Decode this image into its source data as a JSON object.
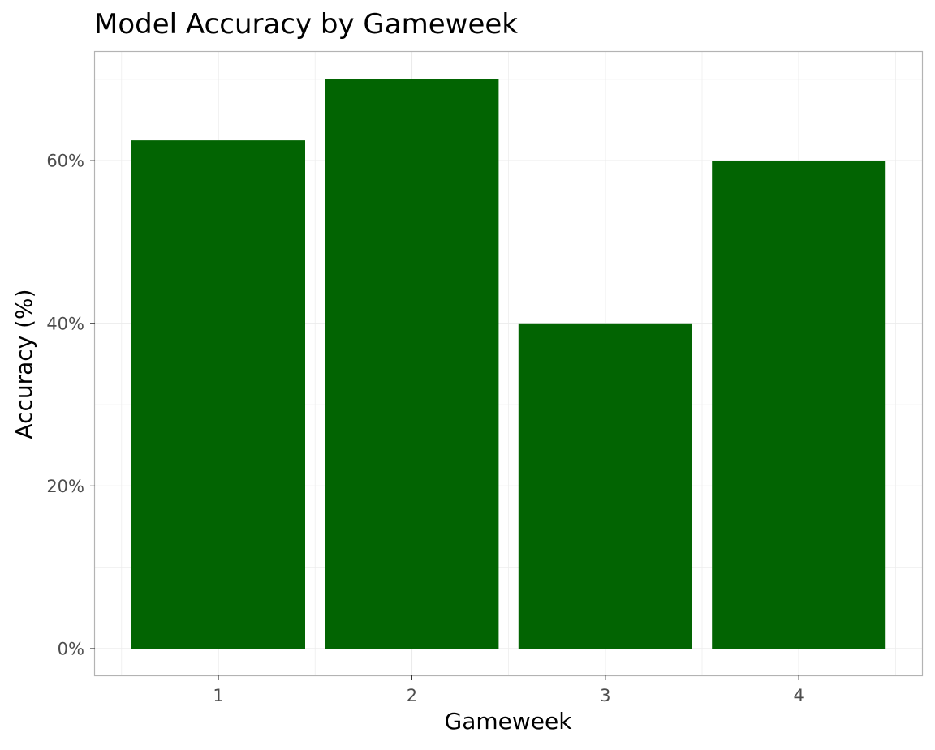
{
  "chart_data": {
    "type": "bar",
    "title": "Model Accuracy by Gameweek",
    "xlabel": "Gameweek",
    "ylabel": "Accuracy (%)",
    "categories": [
      "1",
      "2",
      "3",
      "4"
    ],
    "values": [
      62.5,
      70,
      40,
      60
    ],
    "ylim": [
      0,
      73.5
    ],
    "yticks": [
      0,
      20,
      40,
      60
    ],
    "ytick_labels": [
      "0%",
      "20%",
      "40%",
      "60%"
    ],
    "grid": true,
    "legend": "none",
    "colors": {
      "bar": "#026402",
      "grid": "#ebebeb",
      "panel_border": "#b3b3b3",
      "tick_label": "#4d4d4d"
    }
  }
}
